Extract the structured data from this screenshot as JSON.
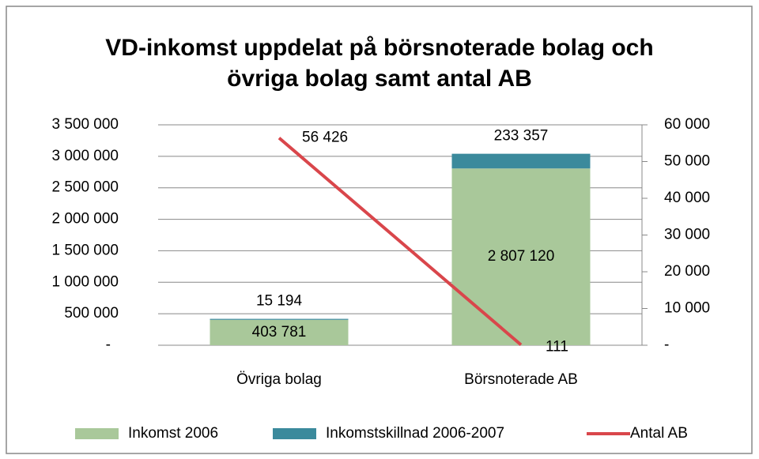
{
  "chart_data": {
    "type": "stacked-bar-line",
    "title": [
      "VD-inkomst uppdelat på börsnoterade bolag och",
      "övriga bolag samt antal AB"
    ],
    "categories": [
      "Övriga bolag",
      "Börsnoterade AB"
    ],
    "series": [
      {
        "name": "Inkomst 2006",
        "color": "#a9c89a",
        "type": "bar",
        "values": [
          403781,
          2807120
        ],
        "value_labels": [
          "403 781",
          "2 807 120"
        ]
      },
      {
        "name": "Inkomstskillnad 2006-2007",
        "color": "#3b8a9c",
        "type": "bar",
        "values": [
          15194,
          233357
        ],
        "value_labels": [
          "15 194",
          "233 357"
        ]
      },
      {
        "name": "Antal AB",
        "color": "#d9464b",
        "type": "line",
        "axis": "y2",
        "values": [
          56426,
          111
        ],
        "value_labels": [
          "56 426",
          "111"
        ]
      }
    ],
    "ylim": [
      0,
      3500000
    ],
    "yticks": [
      {
        "value": 0,
        "label": "-"
      },
      {
        "value": 500000,
        "label": "500 000"
      },
      {
        "value": 1000000,
        "label": "1 000 000"
      },
      {
        "value": 1500000,
        "label": "1 500 000"
      },
      {
        "value": 2000000,
        "label": "2 000 000"
      },
      {
        "value": 2500000,
        "label": "2 500 000"
      },
      {
        "value": 3000000,
        "label": "3 000 000"
      },
      {
        "value": 3500000,
        "label": "3 500 000"
      }
    ],
    "y2lim": [
      0,
      60000
    ],
    "y2ticks": [
      {
        "value": 0,
        "label": "-"
      },
      {
        "value": 10000,
        "label": "10 000"
      },
      {
        "value": 20000,
        "label": "20 000"
      },
      {
        "value": 30000,
        "label": "30 000"
      },
      {
        "value": 40000,
        "label": "40 000"
      },
      {
        "value": 50000,
        "label": "50 000"
      },
      {
        "value": 60000,
        "label": "60 000"
      }
    ],
    "grid": true,
    "legend": "bottom"
  }
}
